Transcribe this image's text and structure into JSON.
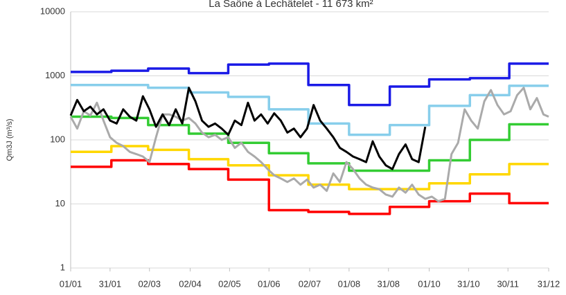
{
  "chart_data": {
    "type": "line",
    "title": "La Saône à Lechâtelet - 11 673 km²",
    "y_label": "Qm3J (m³/s)",
    "log_y": true,
    "xlim": [
      0,
      364
    ],
    "ylim": [
      1,
      10000
    ],
    "yticks": [
      1,
      10,
      100,
      1000,
      10000
    ],
    "xticks": [
      {
        "value": 0,
        "label": "01/01"
      },
      {
        "value": 30,
        "label": "31/01"
      },
      {
        "value": 60,
        "label": "02/03"
      },
      {
        "value": 91,
        "label": "02/04"
      },
      {
        "value": 121,
        "label": "02/05"
      },
      {
        "value": 151,
        "label": "01/06"
      },
      {
        "value": 182,
        "label": "02/07"
      },
      {
        "value": 212,
        "label": "01/08"
      },
      {
        "value": 242,
        "label": "31/08"
      },
      {
        "value": 273,
        "label": "01/10"
      },
      {
        "value": 303,
        "label": "31/10"
      },
      {
        "value": 333,
        "label": "30/11"
      },
      {
        "value": 364,
        "label": "31/12"
      }
    ],
    "series": [
      {
        "color": "#1a1ae6",
        "step": true,
        "x": [
          0,
          31,
          59,
          90,
          120,
          151,
          181,
          212,
          243,
          273,
          304,
          334
        ],
        "values": [
          1150,
          1200,
          1300,
          1100,
          1500,
          1550,
          720,
          350,
          680,
          880,
          920,
          1550
        ]
      },
      {
        "color": "#87ceeb",
        "step": true,
        "x": [
          0,
          31,
          59,
          90,
          120,
          151,
          181,
          212,
          243,
          273,
          304,
          334
        ],
        "values": [
          720,
          720,
          650,
          550,
          470,
          300,
          180,
          120,
          170,
          340,
          500,
          700
        ]
      },
      {
        "color": "#33cc33",
        "step": true,
        "x": [
          0,
          31,
          59,
          90,
          120,
          151,
          181,
          212,
          243,
          273,
          304,
          334
        ],
        "values": [
          230,
          220,
          170,
          125,
          90,
          62,
          43,
          33,
          33,
          48,
          100,
          175
        ]
      },
      {
        "color": "#ffd700",
        "step": true,
        "x": [
          0,
          31,
          59,
          90,
          120,
          151,
          181,
          212,
          243,
          273,
          304,
          334
        ],
        "values": [
          65,
          80,
          70,
          50,
          40,
          28,
          20,
          17,
          17,
          21,
          29,
          42
        ]
      },
      {
        "color": "#ff0000",
        "step": true,
        "x": [
          0,
          31,
          59,
          90,
          120,
          151,
          181,
          212,
          243,
          273,
          304,
          334
        ],
        "values": [
          38,
          48,
          42,
          35,
          24,
          8,
          7.5,
          7,
          9,
          11,
          14.5,
          10.3
        ]
      },
      {
        "color": "#aaaaaa",
        "step": false,
        "x": [
          0,
          5,
          10,
          15,
          20,
          25,
          30,
          35,
          40,
          45,
          50,
          55,
          60,
          65,
          70,
          75,
          80,
          85,
          90,
          95,
          100,
          105,
          110,
          115,
          120,
          125,
          130,
          135,
          140,
          145,
          150,
          155,
          160,
          165,
          170,
          175,
          180,
          185,
          190,
          195,
          200,
          205,
          210,
          215,
          220,
          225,
          230,
          235,
          240,
          245,
          250,
          255,
          260,
          265,
          270,
          275,
          280,
          285,
          290,
          295,
          300,
          305,
          310,
          315,
          320,
          325,
          330,
          335,
          340,
          345,
          350,
          355,
          360,
          364
        ],
        "values": [
          230,
          150,
          280,
          240,
          380,
          200,
          110,
          90,
          80,
          65,
          60,
          55,
          45,
          110,
          250,
          250,
          230,
          200,
          220,
          180,
          130,
          110,
          120,
          100,
          110,
          75,
          90,
          65,
          55,
          45,
          35,
          28,
          25,
          22,
          25,
          20,
          24,
          18,
          20,
          16,
          30,
          22,
          45,
          35,
          25,
          20,
          18,
          17,
          14,
          13,
          18,
          15,
          20,
          14,
          12,
          13,
          11,
          12,
          60,
          90,
          300,
          200,
          150,
          400,
          600,
          350,
          250,
          280,
          500,
          650,
          300,
          450,
          250,
          230
        ]
      },
      {
        "color": "#000000",
        "step": false,
        "x": [
          0,
          5,
          10,
          15,
          20,
          25,
          30,
          35,
          40,
          45,
          50,
          55,
          60,
          65,
          70,
          75,
          80,
          85,
          90,
          95,
          100,
          105,
          110,
          115,
          120,
          125,
          130,
          135,
          140,
          145,
          150,
          155,
          160,
          165,
          170,
          175,
          180,
          185,
          190,
          195,
          200,
          205,
          210,
          215,
          220,
          225,
          230,
          235,
          240,
          245,
          250,
          255,
          260,
          265,
          270
        ],
        "values": [
          240,
          420,
          280,
          330,
          250,
          300,
          200,
          180,
          300,
          230,
          200,
          480,
          300,
          160,
          250,
          170,
          300,
          180,
          650,
          400,
          200,
          160,
          180,
          150,
          120,
          200,
          170,
          380,
          200,
          250,
          180,
          260,
          200,
          130,
          150,
          110,
          150,
          350,
          200,
          150,
          110,
          75,
          65,
          55,
          50,
          45,
          95,
          55,
          40,
          35,
          60,
          85,
          50,
          45,
          160
        ]
      }
    ]
  }
}
